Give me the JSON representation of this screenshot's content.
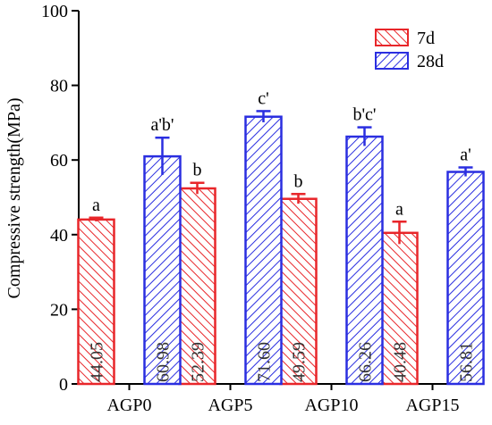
{
  "chart_data": {
    "type": "bar",
    "categories": [
      "AGP0",
      "AGP5",
      "AGP10",
      "AGP15"
    ],
    "ylabel": "Compressive strength(MPa)",
    "xlabel": "",
    "title": "",
    "ylim": [
      0,
      100
    ],
    "yticks": [
      0,
      20,
      40,
      60,
      80,
      100
    ],
    "legend_position": "top-right",
    "series": [
      {
        "name": "7d",
        "color": "#e8262a",
        "values": [
          44.05,
          52.39,
          49.59,
          40.48
        ],
        "value_labels": [
          "44.05",
          "52.39",
          "49.59",
          "40.48"
        ],
        "errors": [
          0.5,
          1.5,
          1.3,
          3.0
        ],
        "letters": [
          "a",
          "b",
          "b",
          "a"
        ]
      },
      {
        "name": "28d",
        "color": "#2a2ee0",
        "values": [
          60.98,
          71.6,
          66.26,
          56.81
        ],
        "value_labels": [
          "60.98",
          "71.60",
          "66.26",
          "56.81"
        ],
        "errors": [
          5.0,
          1.5,
          2.5,
          1.2
        ],
        "letters": [
          "a'b'",
          "c'",
          "b'c'",
          "a'"
        ]
      }
    ]
  }
}
